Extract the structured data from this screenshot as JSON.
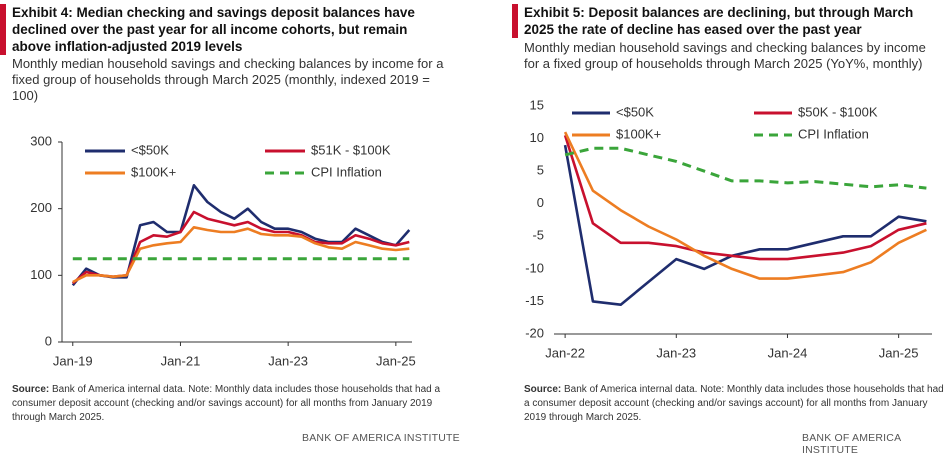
{
  "chart_data": [
    {
      "type": "line",
      "title": "Exhibit 4: Median checking and savings deposit balances have declined over the past year for all income cohorts, but remain above inflation-adjusted 2019 levels",
      "subtitle": "Monthly median household savings and checking balances by income for a fixed group of households through March 2025 (monthly, indexed 2019 = 100)",
      "source_label": "Source:",
      "source": "Bank of America internal data. Note: Monthly data includes those households that had a consumer deposit account (checking and/or savings account) for all months from January 2019 through March 2025.",
      "brand": "BANK OF AMERICA INSTITUTE",
      "x": [
        2019,
        2019.25,
        2019.5,
        2019.75,
        2020,
        2020.25,
        2020.5,
        2020.75,
        2021,
        2021.25,
        2021.5,
        2021.75,
        2022,
        2022.25,
        2022.5,
        2022.75,
        2023,
        2023.25,
        2023.5,
        2023.75,
        2024,
        2024.25,
        2024.5,
        2024.75,
        2025,
        2025.25
      ],
      "xlim": [
        2018.8,
        2025.3
      ],
      "xticks": [
        {
          "value": 2019,
          "label": "Jan-19"
        },
        {
          "value": 2021,
          "label": "Jan-21"
        },
        {
          "value": 2023,
          "label": "Jan-23"
        },
        {
          "value": 2025,
          "label": "Jan-25"
        }
      ],
      "ylim": [
        0,
        300
      ],
      "yticks": [
        0,
        100,
        200,
        300
      ],
      "series": [
        {
          "name": "<$50K",
          "color": "#1f2d6e",
          "values": [
            85,
            110,
            100,
            97,
            97,
            175,
            180,
            165,
            165,
            235,
            210,
            195,
            185,
            200,
            180,
            170,
            170,
            165,
            155,
            150,
            150,
            170,
            160,
            150,
            145,
            168
          ]
        },
        {
          "name": "$51K - $100K",
          "color": "#c8102e",
          "values": [
            88,
            105,
            100,
            98,
            100,
            150,
            160,
            158,
            165,
            195,
            185,
            180,
            175,
            180,
            170,
            165,
            165,
            160,
            150,
            148,
            148,
            160,
            155,
            148,
            145,
            150
          ]
        },
        {
          "name": "$100K+",
          "color": "#ed7d22",
          "values": [
            90,
            100,
            100,
            98,
            100,
            140,
            145,
            148,
            150,
            172,
            168,
            165,
            165,
            170,
            162,
            160,
            160,
            158,
            148,
            142,
            140,
            150,
            145,
            140,
            138,
            140
          ]
        },
        {
          "name": "CPI Inflation",
          "color": "#3aa53a",
          "dashed": true,
          "values": [
            125,
            125,
            125,
            125,
            125,
            125,
            125,
            125,
            125,
            125,
            125,
            125,
            125,
            125,
            125,
            125,
            125,
            125,
            125,
            125,
            125,
            125,
            125,
            125,
            125,
            125
          ]
        }
      ]
    },
    {
      "type": "line",
      "title": "Exhibit 5: Deposit balances are declining, but through March 2025 the rate of decline has eased over the past year",
      "subtitle": "Monthly median household savings and checking balances by income for a fixed group of households through March 2025 (YoY%, monthly)",
      "source_label": "Source:",
      "source": "Bank of America internal data. Note: Monthly data includes those households that had a consumer deposit account (checking and/or savings account) for all months from January 2019 through March 2025.",
      "brand": "BANK OF AMERICA INSTITUTE",
      "x": [
        2022,
        2022.25,
        2022.5,
        2022.75,
        2023,
        2023.25,
        2023.5,
        2023.75,
        2024,
        2024.25,
        2024.5,
        2024.75,
        2025,
        2025.25
      ],
      "xlim": [
        2021.9,
        2025.3
      ],
      "xticks": [
        {
          "value": 2022,
          "label": "Jan-22"
        },
        {
          "value": 2023,
          "label": "Jan-23"
        },
        {
          "value": 2024,
          "label": "Jan-24"
        },
        {
          "value": 2025,
          "label": "Jan-25"
        }
      ],
      "ylim": [
        -20,
        15
      ],
      "yticks": [
        -20,
        -15,
        -10,
        -5,
        0,
        5,
        10,
        15
      ],
      "series": [
        {
          "name": "<$50K",
          "color": "#1f2d6e",
          "values": [
            9,
            -15,
            -15.5,
            -12,
            -8.5,
            -10,
            -8,
            -7,
            -7,
            -6,
            -5,
            -5,
            -2,
            -2.7
          ]
        },
        {
          "name": "$50K - $100K",
          "color": "#c8102e",
          "values": [
            10.5,
            -3,
            -6,
            -6,
            -6.5,
            -7.5,
            -8,
            -8.5,
            -8.5,
            -8,
            -7.5,
            -6.5,
            -4,
            -3
          ]
        },
        {
          "name": "$100K+",
          "color": "#ed7d22",
          "values": [
            11,
            2,
            -1,
            -3.5,
            -5.5,
            -8,
            -10,
            -11.5,
            -11.5,
            -11,
            -10.5,
            -9,
            -6,
            -4
          ]
        },
        {
          "name": "CPI Inflation",
          "color": "#3aa53a",
          "dashed": true,
          "values": [
            7.5,
            8.5,
            8.5,
            7.5,
            6.5,
            5,
            3.5,
            3.5,
            3.2,
            3.4,
            3,
            2.6,
            2.9,
            2.4
          ]
        }
      ]
    }
  ]
}
